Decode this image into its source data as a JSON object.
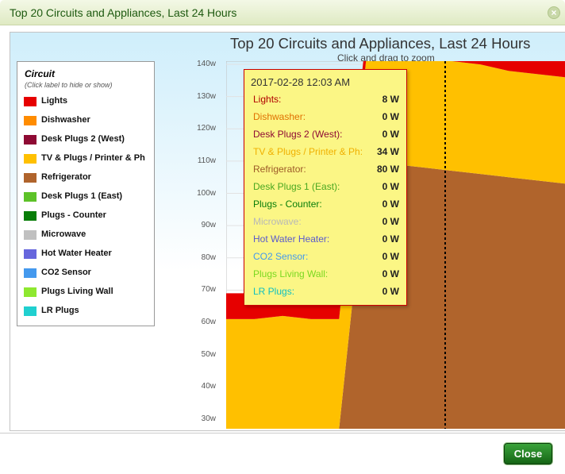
{
  "dialog": {
    "title": "Top 20 Circuits and Appliances, Last 24 Hours",
    "close_icon": "x-circle-icon",
    "close_button_label": "Close"
  },
  "chart_data": {
    "type": "area",
    "title": "Top 20 Circuits and Appliances, Last 24 Hours",
    "subtitle": "Click and drag to zoom",
    "stacked": true,
    "yunit": "w",
    "yticks": [
      "30w",
      "40w",
      "50w",
      "60w",
      "70w",
      "80w",
      "90w",
      "100w",
      "110w",
      "120w",
      "130w",
      "140w"
    ],
    "ylim": [
      27,
      141
    ],
    "legend": {
      "title": "Circuit",
      "hint": "(Click label to hide or show)",
      "placement": "left"
    },
    "series": [
      {
        "name": "Lights",
        "color": "#e60000"
      },
      {
        "name": "Dishwasher",
        "color": "#ff8c00"
      },
      {
        "name": "Desk Plugs 2 (West)",
        "color": "#8e0a34"
      },
      {
        "name": "TV & Plugs / Printer & Ph",
        "color": "#ffc000"
      },
      {
        "name": "Refrigerator",
        "color": "#b0642c"
      },
      {
        "name": "Desk Plugs 1 (East)",
        "color": "#5dc228"
      },
      {
        "name": "Plugs - Counter",
        "color": "#087d08"
      },
      {
        "name": "Microwave",
        "color": "#c0c0c0"
      },
      {
        "name": "Hot Water Heater",
        "color": "#6666dd"
      },
      {
        "name": "CO2 Sensor",
        "color": "#4499ee"
      },
      {
        "name": "Plugs Living Wall",
        "color": "#8ee830"
      },
      {
        "name": "LR Plugs",
        "color": "#20d0d0"
      }
    ],
    "stack_samples": [
      {
        "refrigerator": 0,
        "tv": 34,
        "lights": 8
      },
      {
        "refrigerator": 0,
        "tv": 34,
        "lights": 8
      },
      {
        "refrigerator": 0,
        "tv": 35,
        "lights": 8
      },
      {
        "refrigerator": 0,
        "tv": 34,
        "lights": 8
      },
      {
        "refrigerator": 0,
        "tv": 34,
        "lights": 8
      },
      {
        "refrigerator": 83,
        "tv": 35,
        "lights": 8
      },
      {
        "refrigerator": 82,
        "tv": 35,
        "lights": 8
      },
      {
        "refrigerator": 81,
        "tv": 35,
        "lights": 8
      },
      {
        "refrigerator": 80,
        "tv": 34,
        "lights": 8
      },
      {
        "refrigerator": 79,
        "tv": 34,
        "lights": 8
      },
      {
        "refrigerator": 78,
        "tv": 33,
        "lights": 8
      },
      {
        "refrigerator": 77,
        "tv": 33,
        "lights": 8
      },
      {
        "refrigerator": 76,
        "tv": 33,
        "lights": 8
      }
    ],
    "tooltip": {
      "date": "2017-02-28 12:03 AM",
      "rows": [
        {
          "name": "Lights:",
          "value": "8 W",
          "color": "#b00000"
        },
        {
          "name": "Dishwasher:",
          "value": "0 W",
          "color": "#e07000"
        },
        {
          "name": "Desk Plugs 2 (West):",
          "value": "0 W",
          "color": "#8e0a34"
        },
        {
          "name": "TV & Plugs / Printer & Ph:",
          "value": "34 W",
          "color": "#f0b000"
        },
        {
          "name": "Refrigerator:",
          "value": "80 W",
          "color": "#9c5a28"
        },
        {
          "name": "Desk Plugs 1 (East):",
          "value": "0 W",
          "color": "#4aa820"
        },
        {
          "name": "Plugs - Counter:",
          "value": "0 W",
          "color": "#087d08"
        },
        {
          "name": "Microwave:",
          "value": "0 W",
          "color": "#b8b8b8"
        },
        {
          "name": "Hot Water Heater:",
          "value": "0 W",
          "color": "#5a5acc"
        },
        {
          "name": "CO2 Sensor:",
          "value": "0 W",
          "color": "#4499ee"
        },
        {
          "name": "Plugs Living Wall:",
          "value": "0 W",
          "color": "#7ad820"
        },
        {
          "name": "LR Plugs:",
          "value": "0 W",
          "color": "#10c0c0"
        }
      ]
    }
  }
}
